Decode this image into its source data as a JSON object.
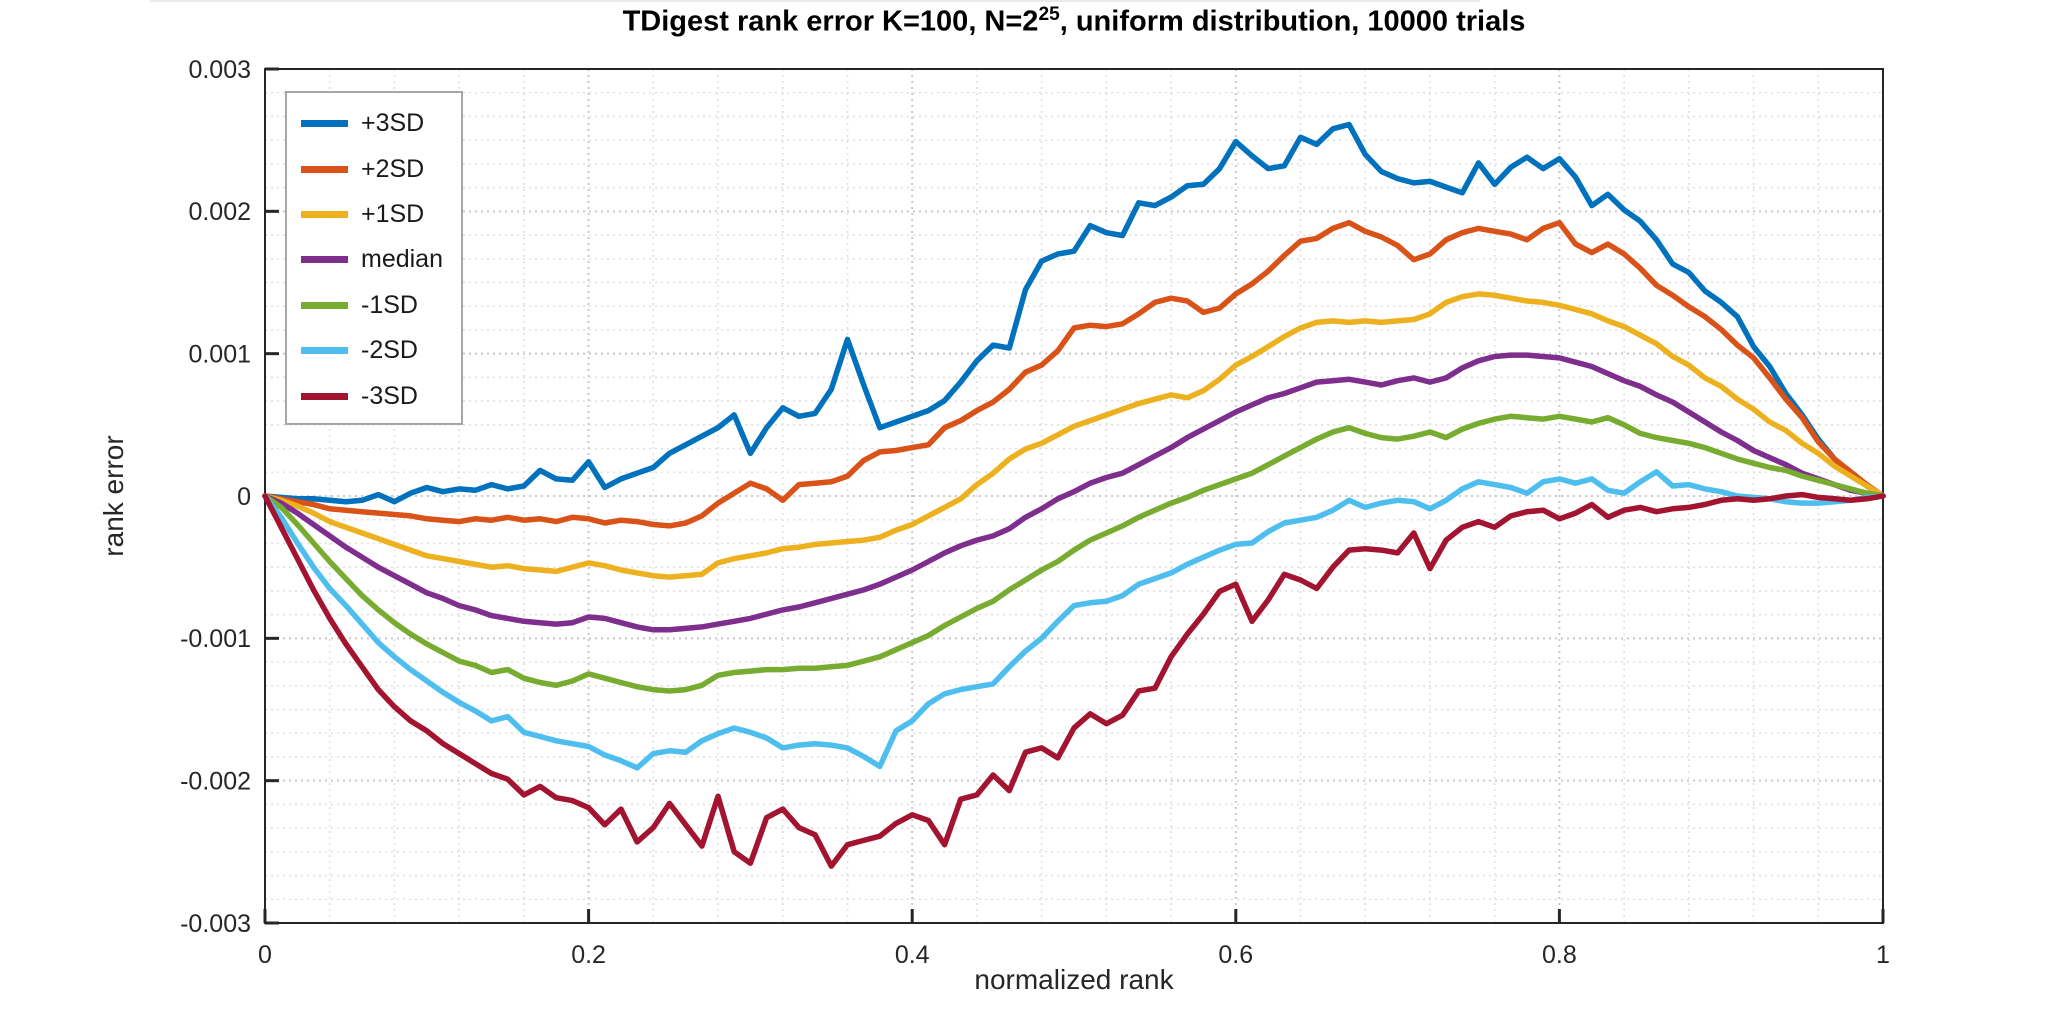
{
  "figure": {
    "title_prefix": "TDigest rank error K=100, N=2",
    "title_superscript": "25",
    "title_suffix": ", uniform distribution, 10000 trials",
    "xlabel": "normalized rank",
    "ylabel": "rank error"
  },
  "chart_data": {
    "type": "line",
    "title": "TDigest rank error K=100, N=2^25, uniform distribution, 10000 trials",
    "xlabel": "normalized rank",
    "ylabel": "rank error",
    "xlim": [
      0,
      1
    ],
    "ylim": [
      -0.003,
      0.003
    ],
    "grid": true,
    "minor_grid": true,
    "legend_position": "top-left",
    "x_ticks": {
      "values": [
        0,
        0.2,
        0.4,
        0.6,
        0.8,
        1
      ],
      "labels": [
        "0",
        "0.2",
        "0.4",
        "0.6",
        "0.8",
        "1"
      ]
    },
    "y_ticks": {
      "values": [
        -0.003,
        -0.002,
        -0.001,
        0,
        0.001,
        0.002,
        0.003
      ],
      "labels": [
        "-0.003",
        "-0.002",
        "-0.001",
        "0",
        "0.001",
        "0.002",
        "0.003"
      ]
    },
    "minor_divisions": {
      "x": 5,
      "y": 6
    },
    "x_sampling": {
      "start": 0,
      "step": 0.01,
      "count": 101
    },
    "value_unit": 1e-05,
    "series": [
      {
        "name": "+3SD",
        "color": "#0072BD",
        "values": [
          0,
          -1,
          -2,
          -2,
          -3,
          -4,
          -3,
          1,
          -4,
          2,
          6,
          3,
          5,
          4,
          8,
          5,
          7,
          18,
          12,
          11,
          24,
          6,
          12,
          16,
          20,
          30,
          36,
          42,
          48,
          57,
          30,
          48,
          62,
          56,
          58,
          75,
          110,
          78,
          48,
          52,
          56,
          60,
          67,
          80,
          95,
          106,
          104,
          145,
          165,
          170,
          172,
          190,
          185,
          183,
          206,
          204,
          210,
          218,
          219,
          230,
          249,
          239,
          230,
          232,
          252,
          247,
          258,
          261,
          240,
          228,
          223,
          220,
          221,
          217,
          213,
          234,
          219,
          231,
          238,
          230,
          237,
          224,
          204,
          212,
          201,
          193,
          180,
          163,
          157,
          144,
          136,
          126,
          105,
          91,
          72,
          57,
          40,
          26,
          16,
          7,
          0
        ]
      },
      {
        "name": "+2SD",
        "color": "#D95319",
        "values": [
          0,
          -2,
          -4,
          -6,
          -9,
          -10,
          -11,
          -12,
          -13,
          -14,
          -16,
          -17,
          -18,
          -16,
          -17,
          -15,
          -17,
          -16,
          -18,
          -15,
          -16,
          -19,
          -17,
          -18,
          -20,
          -21,
          -19,
          -14,
          -5,
          2,
          9,
          5,
          -3,
          8,
          9,
          10,
          14,
          25,
          31,
          32,
          34,
          36,
          48,
          53,
          60,
          66,
          75,
          87,
          92,
          102,
          118,
          120,
          119,
          121,
          128,
          136,
          139,
          137,
          129,
          132,
          142,
          149,
          158,
          169,
          179,
          181,
          188,
          192,
          186,
          182,
          176,
          166,
          170,
          180,
          185,
          188,
          186,
          184,
          180,
          188,
          192,
          177,
          171,
          177,
          170,
          160,
          148,
          141,
          133,
          126,
          117,
          106,
          97,
          83,
          68,
          55,
          38,
          26,
          17,
          8,
          0
        ]
      },
      {
        "name": "+1SD",
        "color": "#EDB120",
        "values": [
          0,
          -3,
          -7,
          -12,
          -18,
          -22,
          -26,
          -30,
          -34,
          -38,
          -42,
          -44,
          -46,
          -48,
          -50,
          -49,
          -51,
          -52,
          -53,
          -50,
          -47,
          -49,
          -52,
          -54,
          -56,
          -57,
          -56,
          -55,
          -47,
          -44,
          -42,
          -40,
          -37,
          -36,
          -34,
          -33,
          -32,
          -31,
          -29,
          -24,
          -20,
          -14,
          -8,
          -2,
          8,
          16,
          26,
          33,
          37,
          43,
          49,
          53,
          57,
          61,
          65,
          68,
          71,
          69,
          74,
          82,
          92,
          98,
          105,
          112,
          118,
          122,
          123,
          122,
          123,
          122,
          123,
          124,
          128,
          136,
          140,
          142,
          141,
          139,
          137,
          136,
          134,
          131,
          128,
          123,
          119,
          113,
          107,
          98,
          92,
          83,
          77,
          68,
          61,
          52,
          46,
          37,
          30,
          21,
          14,
          7,
          0
        ]
      },
      {
        "name": "median",
        "color": "#7E2F8E",
        "values": [
          0,
          -5,
          -12,
          -20,
          -28,
          -36,
          -43,
          -50,
          -56,
          -62,
          -68,
          -72,
          -77,
          -80,
          -84,
          -86,
          -88,
          -89,
          -90,
          -89,
          -85,
          -86,
          -89,
          -92,
          -94,
          -94,
          -93,
          -92,
          -90,
          -88,
          -86,
          -83,
          -80,
          -78,
          -75,
          -72,
          -69,
          -66,
          -62,
          -57,
          -52,
          -46,
          -40,
          -35,
          -31,
          -28,
          -23,
          -15,
          -9,
          -2,
          3,
          9,
          13,
          16,
          22,
          28,
          34,
          41,
          47,
          53,
          59,
          64,
          69,
          72,
          76,
          80,
          81,
          82,
          80,
          78,
          81,
          83,
          80,
          83,
          90,
          95,
          98,
          99,
          99,
          98,
          97,
          94,
          91,
          86,
          81,
          77,
          71,
          66,
          59,
          52,
          45,
          39,
          32,
          27,
          22,
          16,
          12,
          8,
          4,
          2,
          0
        ]
      },
      {
        "name": "-1SD",
        "color": "#77AC30",
        "values": [
          0,
          -8,
          -20,
          -33,
          -46,
          -58,
          -70,
          -80,
          -89,
          -97,
          -104,
          -110,
          -116,
          -119,
          -124,
          -122,
          -128,
          -131,
          -133,
          -130,
          -125,
          -128,
          -131,
          -134,
          -136,
          -137,
          -136,
          -133,
          -126,
          -124,
          -123,
          -122,
          -122,
          -121,
          -121,
          -120,
          -119,
          -116,
          -113,
          -108,
          -103,
          -98,
          -91,
          -85,
          -79,
          -74,
          -66,
          -59,
          -52,
          -46,
          -38,
          -31,
          -26,
          -21,
          -15,
          -10,
          -5,
          -1,
          4,
          8,
          12,
          16,
          22,
          28,
          34,
          40,
          45,
          48,
          44,
          41,
          40,
          42,
          45,
          41,
          47,
          51,
          54,
          56,
          55,
          54,
          56,
          54,
          52,
          55,
          50,
          44,
          41,
          39,
          37,
          34,
          30,
          26,
          23,
          20,
          18,
          14,
          11,
          8,
          5,
          2,
          0
        ]
      },
      {
        "name": "-2SD",
        "color": "#4DBEEE",
        "values": [
          0,
          -15,
          -33,
          -50,
          -65,
          -77,
          -90,
          -103,
          -113,
          -122,
          -130,
          -138,
          -145,
          -151,
          -158,
          -155,
          -166,
          -169,
          -172,
          -174,
          -176,
          -182,
          -186,
          -191,
          -181,
          -179,
          -180,
          -172,
          -167,
          -163,
          -166,
          -170,
          -177,
          -175,
          -174,
          -175,
          -177,
          -183,
          -190,
          -165,
          -158,
          -146,
          -139,
          -136,
          -134,
          -132,
          -120,
          -109,
          -100,
          -88,
          -77,
          -75,
          -74,
          -70,
          -62,
          -58,
          -54,
          -48,
          -43,
          -38,
          -34,
          -33,
          -25,
          -19,
          -17,
          -15,
          -10,
          -3,
          -8,
          -5,
          -3,
          -4,
          -9,
          -3,
          5,
          10,
          8,
          6,
          2,
          10,
          12,
          9,
          12,
          4,
          2,
          10,
          17,
          7,
          8,
          5,
          3,
          0,
          -1,
          -2,
          -4,
          -5,
          -5,
          -4,
          -3,
          -1,
          0
        ]
      },
      {
        "name": "-3SD",
        "color": "#A2142F",
        "values": [
          0,
          -22,
          -44,
          -66,
          -86,
          -104,
          -120,
          -136,
          -148,
          -158,
          -165,
          -174,
          -181,
          -188,
          -195,
          -199,
          -210,
          -204,
          -212,
          -214,
          -219,
          -231,
          -220,
          -243,
          -233,
          -216,
          -231,
          -246,
          -211,
          -250,
          -258,
          -226,
          -220,
          -233,
          -238,
          -260,
          -245,
          -242,
          -239,
          -230,
          -224,
          -228,
          -245,
          -213,
          -210,
          -196,
          -207,
          -180,
          -177,
          -184,
          -163,
          -153,
          -160,
          -154,
          -137,
          -135,
          -113,
          -97,
          -83,
          -67,
          -62,
          -88,
          -73,
          -55,
          -59,
          -65,
          -50,
          -38,
          -37,
          -38,
          -40,
          -26,
          -51,
          -31,
          -22,
          -18,
          -22,
          -14,
          -11,
          -10,
          -16,
          -12,
          -6,
          -15,
          -10,
          -8,
          -11,
          -9,
          -8,
          -6,
          -3,
          -2,
          -3,
          -2,
          0,
          1,
          -1,
          -2,
          -3,
          -2,
          0
        ]
      }
    ]
  }
}
